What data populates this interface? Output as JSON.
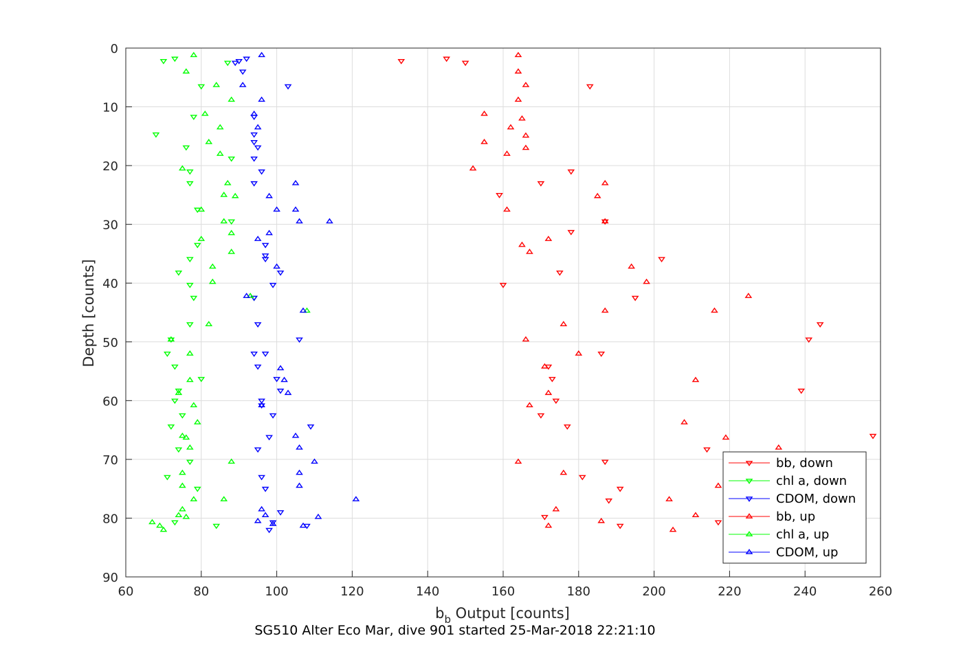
{
  "chart_data": {
    "type": "scatter",
    "title": "SG510 Alter Eco Mar, dive 901 started 25-Mar-2018 22:21:10",
    "xlabel_main": "b",
    "xlabel_sub": "b",
    "xlabel_rest": " Output [counts]",
    "ylabel": "Depth [counts]",
    "xlim": [
      60,
      260
    ],
    "ylim": [
      0,
      90
    ],
    "y_reversed": true,
    "grid": true,
    "legend_position": "bottom-right",
    "xticks": [
      "60",
      "80",
      "100",
      "120",
      "140",
      "160",
      "180",
      "200",
      "220",
      "240",
      "260"
    ],
    "yticks": [
      "0",
      "10",
      "20",
      "30",
      "40",
      "50",
      "60",
      "70",
      "80",
      "90"
    ],
    "series": [
      {
        "name": "bb, down",
        "color": "#ff0000",
        "marker": "triangle-down",
        "x": [
          133,
          145,
          150,
          183,
          187,
          178,
          170,
          159,
          187,
          178,
          202,
          175,
          160,
          195,
          244,
          241,
          186,
          172,
          173,
          239,
          174,
          170,
          177,
          258,
          214,
          187,
          181,
          191,
          188,
          217,
          191,
          171
        ],
        "y": [
          2.2,
          1.8,
          2.5,
          6.5,
          29.5,
          21,
          23,
          25,
          29.5,
          31.3,
          35.9,
          38.2,
          40.3,
          42.5,
          47,
          49.6,
          52,
          54.2,
          56.3,
          58.3,
          60,
          62.5,
          64.4,
          66,
          68.3,
          70.4,
          73,
          75,
          77,
          80.7,
          81.3,
          79.8
        ]
      },
      {
        "name": "chl a, down",
        "color": "#00ff00",
        "marker": "triangle-down",
        "x": [
          70,
          73,
          87,
          80,
          78,
          68,
          76,
          77,
          77,
          88,
          79,
          88,
          79,
          77,
          74,
          77,
          78,
          94,
          77,
          72,
          71,
          73,
          80,
          74,
          73,
          75,
          72,
          74,
          77,
          79,
          71,
          73,
          84
        ],
        "y": [
          2.2,
          1.8,
          2.5,
          6.5,
          11.7,
          14.7,
          16.9,
          21,
          23,
          18.8,
          27.5,
          29.5,
          33.5,
          35.9,
          38.2,
          40.3,
          42.5,
          42.5,
          47,
          49.6,
          52,
          54.2,
          56.3,
          58.3,
          60,
          62.5,
          64.4,
          68.3,
          70.4,
          75,
          73,
          80.7,
          81.3
        ]
      },
      {
        "name": "CDOM, down",
        "color": "#0000ff",
        "marker": "triangle-down",
        "x": [
          90,
          92,
          89,
          91,
          103,
          94,
          94,
          95,
          94,
          94,
          96,
          94,
          94,
          97,
          97,
          97,
          101,
          99,
          94,
          95,
          106,
          97,
          95,
          100,
          101,
          96,
          96,
          99,
          109,
          98,
          95,
          96,
          97,
          101,
          99,
          98,
          108
        ],
        "y": [
          2.2,
          1.8,
          2.5,
          4,
          6.5,
          11.7,
          14.7,
          16.9,
          18.8,
          16,
          21,
          23,
          42.5,
          33.5,
          35.9,
          35.3,
          38.2,
          40.3,
          52,
          54.2,
          49.6,
          52,
          47,
          56.3,
          58.3,
          60,
          60.8,
          62.5,
          64.4,
          66.2,
          68.3,
          73,
          75,
          79,
          80.7,
          82,
          81.3
        ]
      },
      {
        "name": "bb, up",
        "color": "#ff0000",
        "marker": "triangle-up",
        "x": [
          164,
          164,
          166,
          164,
          155,
          165,
          162,
          166,
          155,
          166,
          161,
          152,
          187,
          185,
          161,
          187,
          172,
          165,
          167,
          194,
          198,
          225,
          216,
          187,
          176,
          166,
          180,
          171,
          211,
          172,
          167,
          208,
          219,
          233,
          164,
          176,
          217,
          204,
          174,
          211,
          186,
          205,
          172
        ],
        "y": [
          1.2,
          4,
          6.3,
          8.8,
          11.2,
          12,
          13.5,
          14.9,
          16,
          17,
          18,
          20.5,
          23,
          25.2,
          27.5,
          29.5,
          32.5,
          33.5,
          34.7,
          37.2,
          39.8,
          42.2,
          44.7,
          44.7,
          47,
          49.6,
          52,
          54.2,
          56.5,
          58.7,
          60.8,
          63.7,
          66.3,
          68,
          70.4,
          72.3,
          74.5,
          76.8,
          78.5,
          79.5,
          80.5,
          82,
          81.3
        ]
      },
      {
        "name": "chl a, up",
        "color": "#00ff00",
        "marker": "triangle-up",
        "x": [
          78,
          76,
          84,
          88,
          81,
          85,
          82,
          85,
          75,
          87,
          86,
          89,
          80,
          86,
          88,
          80,
          83,
          83,
          93,
          108,
          82,
          72,
          77,
          88,
          77,
          74,
          78,
          75,
          79,
          76,
          77,
          88,
          75,
          75,
          86,
          75,
          74,
          76,
          67,
          69,
          70,
          78
        ],
        "y": [
          1.2,
          4,
          6.3,
          8.8,
          11.2,
          13.5,
          16,
          18,
          20.5,
          23,
          25,
          25.2,
          27.5,
          29.5,
          31.5,
          32.5,
          37.2,
          39.8,
          42.2,
          44.7,
          47,
          49.6,
          52,
          34.7,
          56.5,
          58.7,
          60.8,
          66,
          63.7,
          66.3,
          68,
          70.4,
          72.3,
          74.5,
          76.8,
          78.5,
          79.5,
          79.8,
          80.7,
          81.3,
          82,
          76.8
        ]
      },
      {
        "name": "CDOM, up",
        "color": "#0000ff",
        "marker": "triangle-up",
        "x": [
          96,
          91,
          96,
          94,
          95,
          105,
          98,
          100,
          105,
          106,
          114,
          98,
          95,
          100,
          92,
          107,
          101,
          102,
          103,
          96,
          105,
          106,
          110,
          106,
          106,
          121,
          96,
          97,
          111,
          95,
          107,
          99
        ],
        "y": [
          1.2,
          6.3,
          8.8,
          11.2,
          13.5,
          23,
          25.2,
          27.5,
          27.5,
          29.5,
          29.5,
          31.5,
          32.5,
          37.2,
          42.2,
          44.7,
          54.5,
          56.5,
          58.7,
          60.8,
          66,
          68,
          70.4,
          72.3,
          74.5,
          76.8,
          78.5,
          79.5,
          79.8,
          80.5,
          81.3,
          81
        ]
      }
    ]
  }
}
